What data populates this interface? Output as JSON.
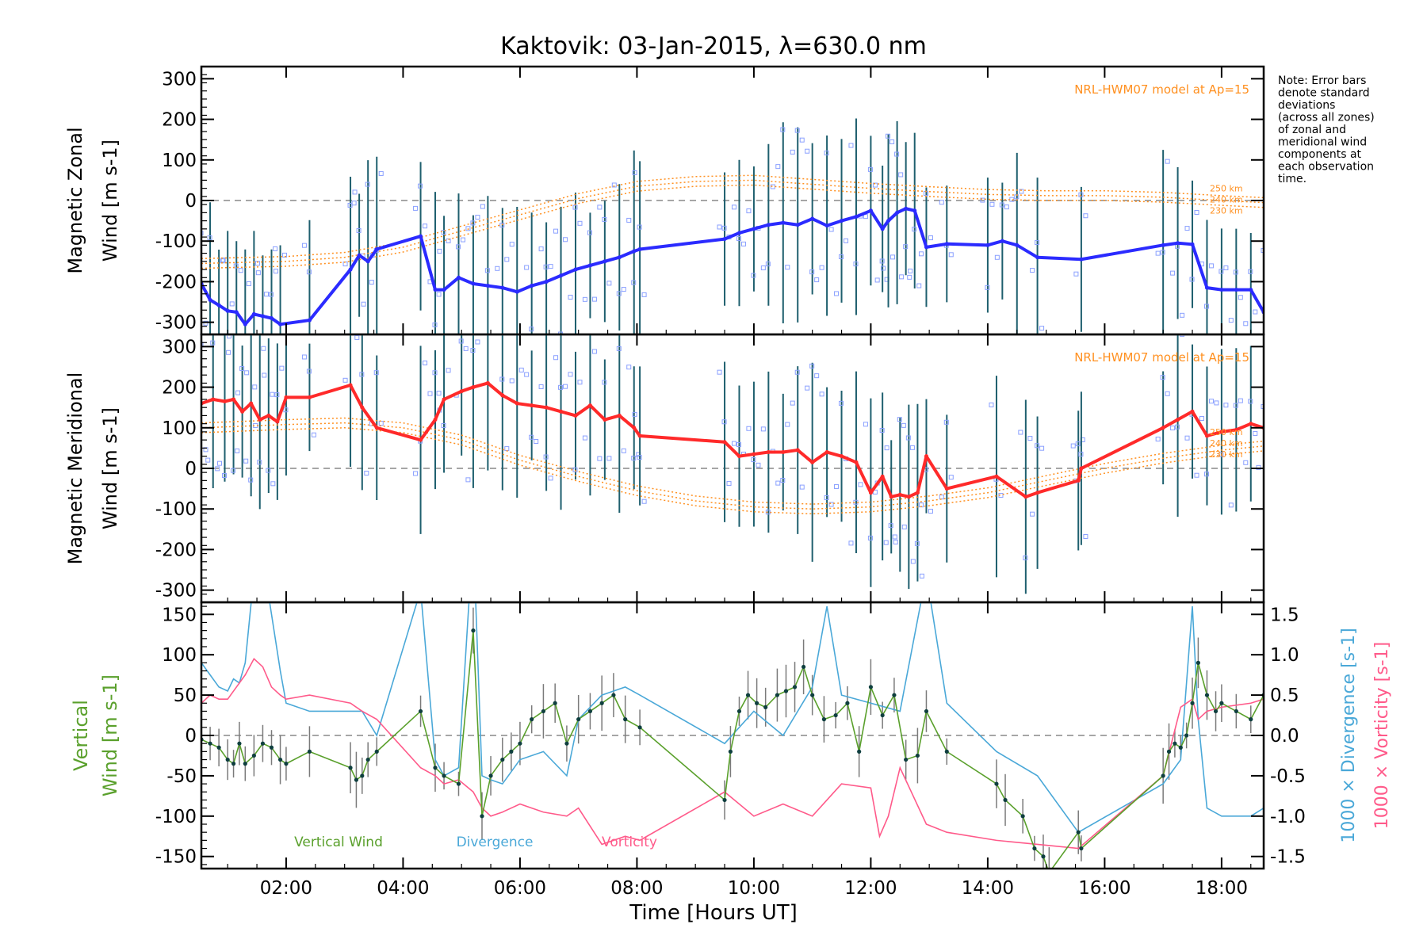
{
  "title": "Kaktovik: 03-Jan-2015, λ=630.0 nm",
  "note": [
    "Note: Error bars",
    "denote standard",
    "deviations",
    "(across all zones)",
    "of zonal and",
    "meridional wind",
    "components at",
    "each observation",
    "time."
  ],
  "hwm_label": "NRL-HWM07 model at Ap=15",
  "xlabel": "Time [Hours UT]",
  "xticks": [
    "02:00",
    "04:00",
    "06:00",
    "08:00",
    "10:00",
    "12:00",
    "14:00",
    "16:00",
    "18:00"
  ],
  "colors": {
    "zonal": "#2b2bff",
    "meridional": "#ff2a2a",
    "vertical": "#5aa02c",
    "divergence": "#4aa8d8",
    "vorticity": "#ff5a8a",
    "model": "#ff9020",
    "errorbar": "#1e5f6e"
  },
  "chart_data": [
    {
      "type": "line",
      "panel": "zonal",
      "ylabel_line1": "Magnetic Zonal",
      "ylabel_line2": "Wind [m s-1]",
      "ylim": [
        -330,
        330
      ],
      "yticks": [
        300,
        200,
        100,
        0,
        -100,
        -200,
        -300
      ],
      "xlim": [
        0.55,
        18.72
      ],
      "model_labels": [
        "250 km",
        "240 km",
        "230 km"
      ],
      "series": [
        {
          "values_x": [
            0.55,
            0.7,
            0.85,
            1.0,
            1.15,
            1.3,
            1.45,
            1.6,
            1.75,
            1.9,
            2.4,
            3.1,
            3.25,
            3.4,
            3.55,
            4.3,
            4.55,
            4.7,
            4.95,
            5.2,
            5.45,
            5.7,
            5.95,
            6.2,
            6.45,
            6.7,
            6.95,
            7.2,
            7.45,
            7.7,
            7.95,
            8.05,
            9.5,
            9.75,
            10.0,
            10.25,
            10.5,
            10.75,
            11.0,
            11.25,
            11.5,
            11.75,
            12.0,
            12.2,
            12.3,
            12.45,
            12.6,
            12.75,
            12.95,
            13.3,
            14.0,
            14.25,
            14.5,
            14.85,
            15.6,
            17.0,
            17.25,
            17.5,
            17.75,
            18.0,
            18.25,
            18.5,
            18.72
          ],
          "values_y": [
            -205,
            -245,
            -258,
            -272,
            -275,
            -305,
            -280,
            -285,
            -290,
            -305,
            -295,
            -170,
            -135,
            -150,
            -120,
            -88,
            -220,
            -220,
            -190,
            -205,
            -210,
            -215,
            -225,
            -210,
            -200,
            -185,
            -170,
            -160,
            -150,
            -140,
            -125,
            -120,
            -95,
            -80,
            -70,
            -60,
            -55,
            -60,
            -45,
            -62,
            -50,
            -40,
            -25,
            -70,
            -50,
            -30,
            -20,
            -25,
            -115,
            -107,
            -110,
            -100,
            -110,
            -140,
            -145,
            -110,
            -105,
            -108,
            -215,
            -220,
            -220,
            -220,
            -275
          ]
        }
      ],
      "model": {
        "x": [
          0.55,
          2.0,
          3.0,
          4.0,
          5.0,
          6.0,
          7.0,
          8.0,
          9.0,
          10.0,
          11.0,
          12.0,
          13.0,
          14.0,
          15.0,
          16.0,
          17.0,
          18.0,
          18.72
        ],
        "y": [
          -155,
          -150,
          -140,
          -115,
          -75,
          -35,
          5,
          35,
          47,
          50,
          40,
          30,
          22,
          15,
          12,
          12,
          8,
          0,
          -5
        ]
      }
    },
    {
      "type": "line",
      "panel": "meridional",
      "ylabel_line1": "Magnetic Meridional",
      "ylabel_line2": "Wind [m s-1]",
      "ylim": [
        -330,
        330
      ],
      "yticks": [
        300,
        200,
        100,
        0,
        -100,
        -200,
        -300
      ],
      "xlim": [
        0.55,
        18.72
      ],
      "model_labels": [
        "250 km",
        "240 km",
        "230 km"
      ],
      "series": [
        {
          "values_x": [
            0.55,
            0.75,
            0.95,
            1.1,
            1.25,
            1.4,
            1.55,
            1.7,
            1.85,
            2.0,
            2.4,
            3.1,
            3.3,
            3.55,
            4.3,
            4.55,
            4.7,
            5.0,
            5.2,
            5.45,
            5.7,
            5.95,
            6.2,
            6.45,
            6.7,
            6.95,
            7.2,
            7.45,
            7.7,
            7.95,
            8.05,
            9.5,
            9.75,
            10.0,
            10.25,
            10.5,
            10.75,
            11.0,
            11.25,
            11.5,
            11.75,
            12.0,
            12.2,
            12.35,
            12.5,
            12.65,
            12.8,
            12.95,
            13.3,
            14.15,
            14.65,
            14.85,
            15.55,
            15.6,
            17.0,
            17.25,
            17.5,
            17.75,
            18.0,
            18.25,
            18.5,
            18.72
          ],
          "values_y": [
            160,
            170,
            165,
            170,
            140,
            160,
            120,
            130,
            115,
            175,
            175,
            205,
            150,
            100,
            70,
            120,
            170,
            190,
            200,
            210,
            180,
            160,
            155,
            150,
            140,
            130,
            155,
            120,
            130,
            100,
            80,
            65,
            30,
            35,
            40,
            40,
            45,
            15,
            40,
            30,
            15,
            -60,
            -20,
            -70,
            -65,
            -70,
            -60,
            30,
            -50,
            -20,
            -70,
            -60,
            -30,
            0,
            100,
            120,
            140,
            80,
            90,
            95,
            110,
            100
          ]
        }
      ],
      "model": {
        "x": [
          0.55,
          2.0,
          3.0,
          4.0,
          5.0,
          6.0,
          7.0,
          8.0,
          9.0,
          10.0,
          11.0,
          12.0,
          13.0,
          14.0,
          15.0,
          16.0,
          17.0,
          18.0,
          18.72
        ],
        "y": [
          100,
          108,
          112,
          100,
          70,
          20,
          -20,
          -55,
          -80,
          -95,
          -100,
          -95,
          -80,
          -60,
          -30,
          0,
          25,
          45,
          55
        ]
      }
    },
    {
      "type": "line",
      "panel": "vertical",
      "ylabel_line1": "Vertical",
      "ylabel_line2": "Wind [m s-1]",
      "right_label_divergence": "1000 × Divergence [s-1]",
      "right_label_vorticity": "1000 × Vorticity [s-1]",
      "ylim": [
        -165,
        165
      ],
      "yticks": [
        150,
        100,
        50,
        0,
        -50,
        -100,
        -150
      ],
      "right_ylim": [
        -1.65,
        1.65
      ],
      "right_yticks": [
        "1.5",
        "1.0",
        "0.5",
        "0.0",
        "-0.5",
        "-1.0",
        "-1.5"
      ],
      "xlim": [
        0.55,
        18.72
      ],
      "legend": [
        "Vertical Wind",
        "Divergence",
        "Vorticity"
      ],
      "series": [
        {
          "name": "Vertical Wind",
          "values_x": [
            0.55,
            0.7,
            0.85,
            1.0,
            1.1,
            1.2,
            1.3,
            1.45,
            1.6,
            1.75,
            1.9,
            2.0,
            2.4,
            3.1,
            3.2,
            3.3,
            3.4,
            3.55,
            4.3,
            4.55,
            4.7,
            4.95,
            5.2,
            5.35,
            5.5,
            5.7,
            5.85,
            6.0,
            6.2,
            6.4,
            6.6,
            6.8,
            7.0,
            7.2,
            7.4,
            7.6,
            7.8,
            8.05,
            9.5,
            9.6,
            9.75,
            9.9,
            10.05,
            10.2,
            10.4,
            10.55,
            10.7,
            10.85,
            11.0,
            11.2,
            11.4,
            11.6,
            11.8,
            12.0,
            12.2,
            12.4,
            12.6,
            12.8,
            12.95,
            13.3,
            14.15,
            14.3,
            14.6,
            14.8,
            14.95,
            15.05,
            15.55,
            15.6,
            17.0,
            17.1,
            17.2,
            17.3,
            17.4,
            17.5,
            17.6,
            17.75,
            17.9,
            18.0,
            18.25,
            18.5,
            18.72
          ],
          "values_y": [
            -5,
            -10,
            -15,
            -30,
            -35,
            -10,
            -35,
            -25,
            -10,
            -15,
            -30,
            -35,
            -20,
            -40,
            -55,
            -50,
            -30,
            -20,
            30,
            -40,
            -50,
            -60,
            130,
            -100,
            -50,
            -30,
            -20,
            -10,
            20,
            30,
            40,
            -10,
            20,
            30,
            40,
            50,
            20,
            10,
            -80,
            -20,
            30,
            50,
            40,
            35,
            50,
            55,
            60,
            85,
            50,
            20,
            25,
            40,
            -20,
            60,
            25,
            50,
            -30,
            -25,
            30,
            -20,
            -60,
            -80,
            -100,
            -140,
            -150,
            -170,
            -120,
            -140,
            -50,
            -20,
            -10,
            -15,
            0,
            40,
            90,
            50,
            30,
            40,
            30,
            20,
            50
          ]
        },
        {
          "name": "Divergence",
          "values_x": [
            0.55,
            0.7,
            0.85,
            1.0,
            1.1,
            1.2,
            1.3,
            1.45,
            1.6,
            1.75,
            1.9,
            2.0,
            2.4,
            3.1,
            3.3,
            3.55,
            4.3,
            4.55,
            4.7,
            4.95,
            5.2,
            5.35,
            5.5,
            5.7,
            6.0,
            6.4,
            6.8,
            7.0,
            7.4,
            7.8,
            8.05,
            9.5,
            10.0,
            10.5,
            11.0,
            11.25,
            11.5,
            12.0,
            12.5,
            12.95,
            13.3,
            14.15,
            14.85,
            15.55,
            17.0,
            17.3,
            17.5,
            17.6,
            17.75,
            18.0,
            18.5,
            18.72
          ],
          "values_y": [
            0.9,
            0.75,
            0.6,
            0.55,
            0.7,
            0.65,
            0.9,
            2.0,
            2.2,
            1.5,
            0.8,
            0.4,
            0.3,
            0.3,
            0.3,
            0.0,
            1.8,
            -0.3,
            -0.5,
            -0.4,
            2.5,
            -0.5,
            -0.55,
            -0.6,
            -0.3,
            -0.2,
            -0.5,
            0.2,
            0.5,
            0.6,
            0.5,
            -0.1,
            0.3,
            0.0,
            0.6,
            1.6,
            0.5,
            0.4,
            0.3,
            2.0,
            0.4,
            -0.2,
            -0.5,
            -1.2,
            -0.6,
            -0.3,
            1.6,
            0.2,
            -0.9,
            -1.0,
            -1.0,
            -0.9
          ]
        },
        {
          "name": "Vorticity",
          "values_x": [
            0.55,
            0.7,
            0.85,
            1.0,
            1.15,
            1.3,
            1.45,
            1.6,
            1.75,
            1.9,
            2.0,
            2.4,
            3.1,
            3.3,
            3.55,
            4.3,
            4.55,
            4.7,
            4.95,
            5.2,
            5.35,
            5.5,
            5.7,
            6.0,
            6.4,
            6.8,
            7.0,
            7.4,
            7.8,
            8.05,
            9.5,
            10.0,
            10.5,
            11.0,
            11.25,
            11.5,
            12.0,
            12.15,
            12.3,
            12.5,
            12.95,
            13.3,
            14.15,
            14.85,
            15.55,
            17.0,
            17.3,
            17.5,
            17.6,
            17.75,
            18.0,
            18.5,
            18.72
          ],
          "values_y": [
            0.4,
            0.5,
            0.45,
            0.45,
            0.6,
            0.75,
            0.95,
            0.85,
            0.6,
            0.5,
            0.45,
            0.5,
            0.4,
            0.3,
            0.2,
            -0.4,
            -0.5,
            -0.6,
            -0.55,
            -0.7,
            -0.9,
            -1.0,
            -0.95,
            -0.85,
            -0.95,
            -1.0,
            -0.9,
            -1.35,
            -1.25,
            -1.3,
            -0.7,
            -1.0,
            -0.85,
            -1.0,
            -0.8,
            -0.6,
            -0.65,
            -1.25,
            -1.0,
            -0.4,
            -1.1,
            -1.2,
            -1.3,
            -1.35,
            -1.4,
            -0.5,
            0.35,
            0.45,
            0.2,
            0.3,
            0.35,
            0.4,
            0.45
          ]
        }
      ]
    }
  ]
}
